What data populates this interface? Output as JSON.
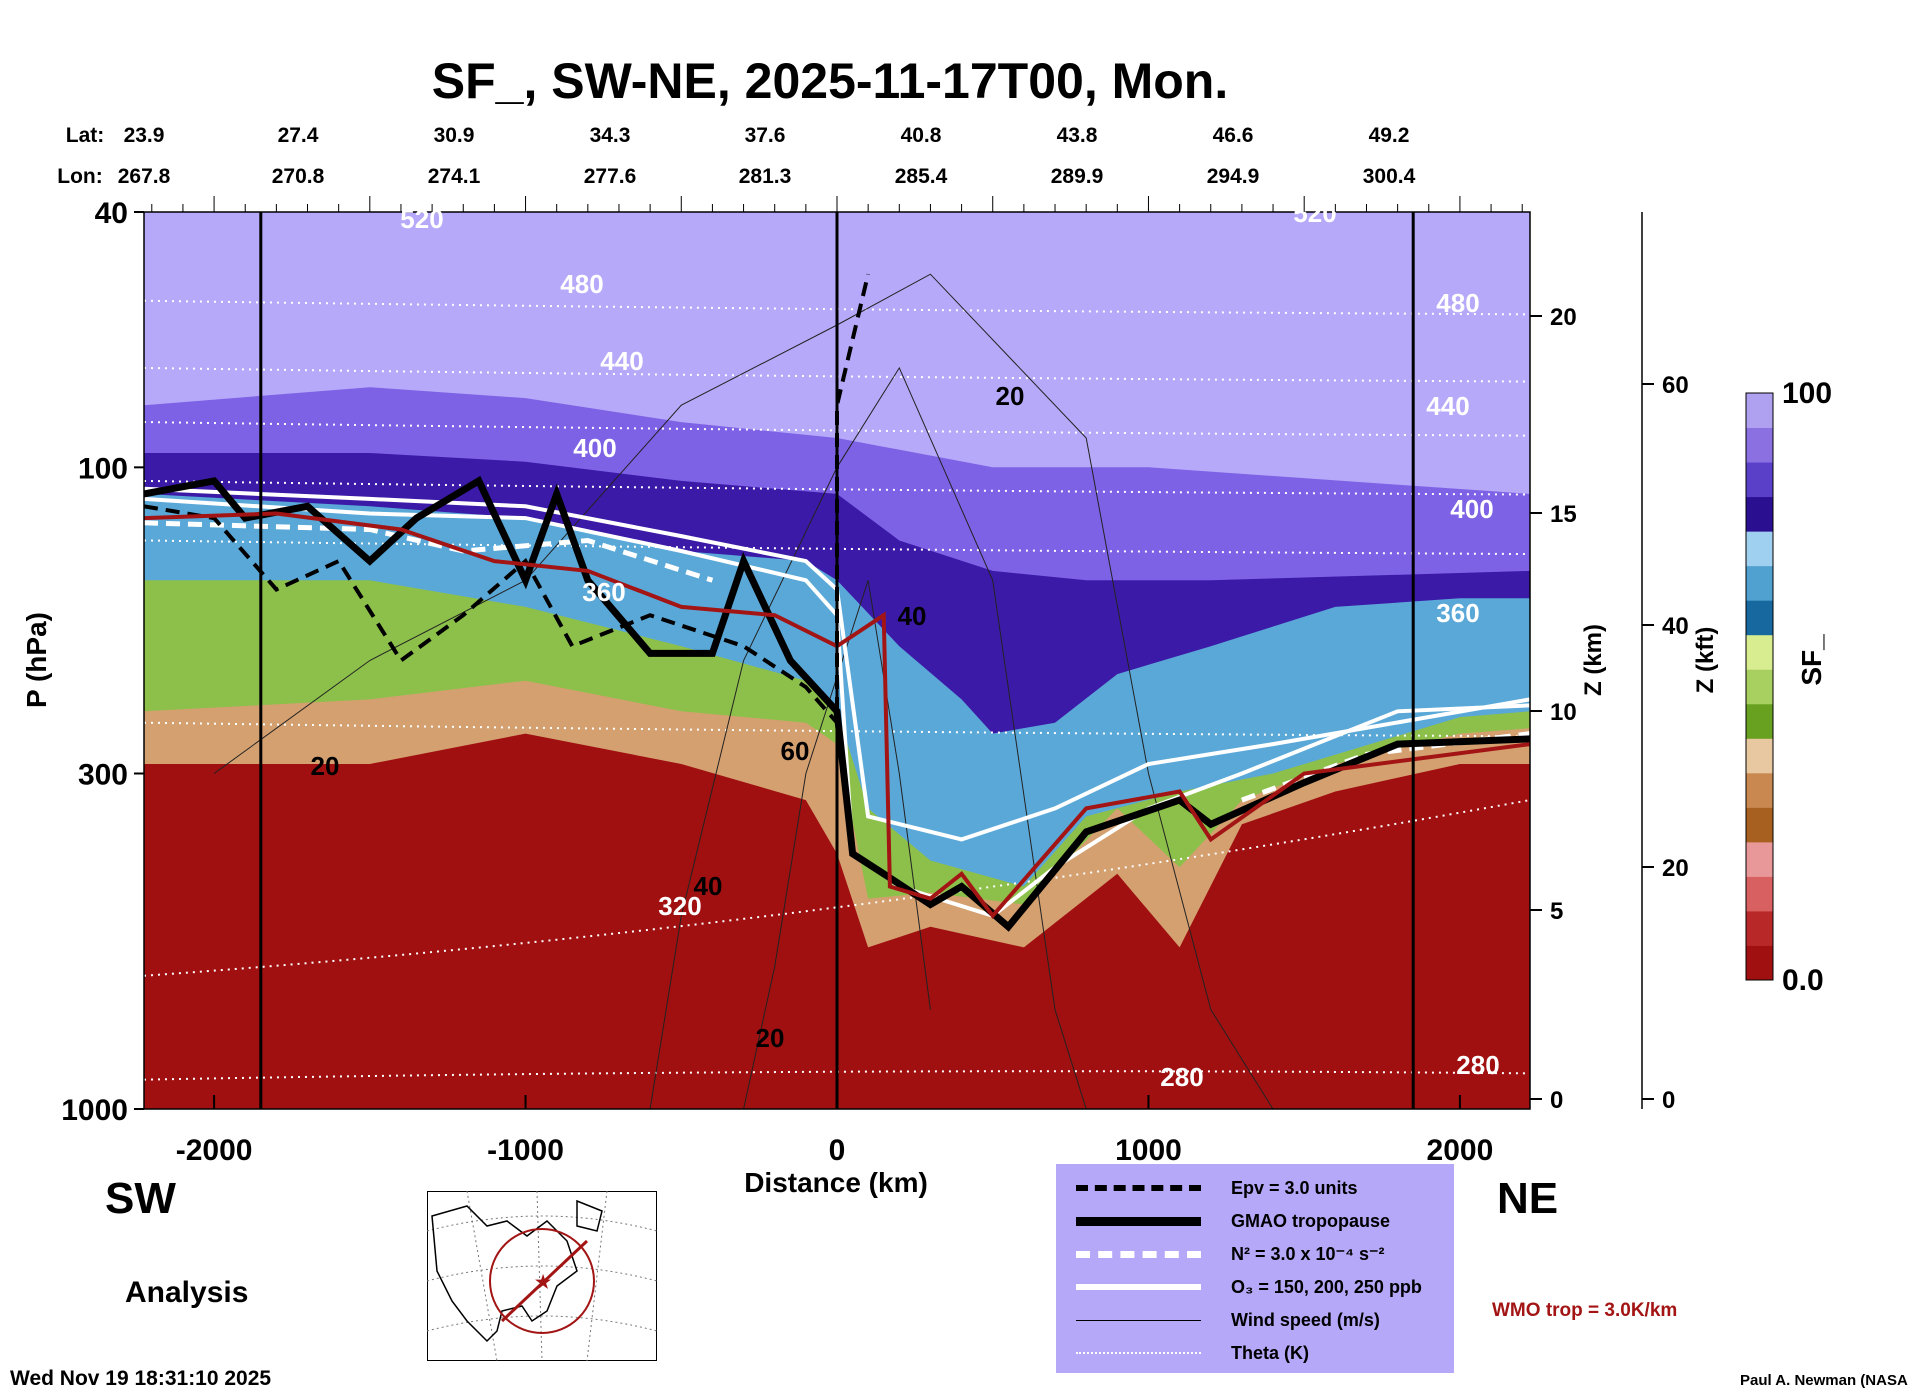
{
  "title": "SF_, SW-NE, 2025-11-17T00, Mon.",
  "lat_label": "Lat:",
  "lon_label": "Lon:",
  "lats": [
    "23.9",
    "27.4",
    "30.9",
    "34.3",
    "37.6",
    "40.8",
    "43.8",
    "46.6",
    "49.2"
  ],
  "lons": [
    "267.8",
    "270.8",
    "274.1",
    "277.6",
    "281.3",
    "285.4",
    "289.9",
    "294.9",
    "300.4"
  ],
  "left_end": "SW",
  "right_end": "NE",
  "analysis_label": "Analysis",
  "timestamp": "Wed Nov 19 18:31:10 2025",
  "credit": "Paul A. Newman (NASA",
  "wmo_label": "WMO trop = 3.0K/km",
  "colors": {
    "wmo": "#a31515",
    "legend_bg": "#b6a8f8"
  },
  "legend": [
    {
      "label": "Epv = 3.0 units",
      "style": "dashed-black"
    },
    {
      "label": "GMAO tropopause",
      "style": "thick-black"
    },
    {
      "label": "N² = 3.0 x 10⁻⁴ s⁻²",
      "style": "dashed-white"
    },
    {
      "label": "O₃ = 150, 200, 250 ppb",
      "style": "solid-white"
    },
    {
      "label": "Wind speed (m/s)",
      "style": "thin-black"
    },
    {
      "label": "Theta (K)",
      "style": "dotted-white"
    }
  ],
  "chart_data": {
    "type": "heatmap",
    "title": "SF_, SW-NE, 2025-11-17T00, Mon.",
    "xlabel": "Distance (km)",
    "ylabel": "P (hPa)",
    "y2label": "Z (km)",
    "y3label": "Z (kft)",
    "xlim": [
      -2225,
      2225
    ],
    "ylim": [
      1000,
      40
    ],
    "yscale": "log",
    "x_ticks": [
      "-2000",
      "-1000",
      "0",
      "1000",
      "2000"
    ],
    "x_tick_values": [
      -2000,
      -1000,
      0,
      1000,
      2000
    ],
    "y_ticks": [
      "40",
      "100",
      "300",
      "1000"
    ],
    "y_tick_values": [
      40,
      100,
      300,
      1000
    ],
    "zkm_ticks": [
      "20",
      "15",
      "10",
      "5",
      "0"
    ],
    "zkft_ticks": [
      "60",
      "40",
      "20",
      "0"
    ],
    "colorbar": {
      "label": "SF_",
      "max": "100",
      "min": "0.0"
    },
    "theta_labels": [
      "520",
      "480",
      "440",
      "400",
      "360",
      "320",
      "280"
    ],
    "wind_labels": [
      "20",
      "40",
      "60"
    ]
  }
}
